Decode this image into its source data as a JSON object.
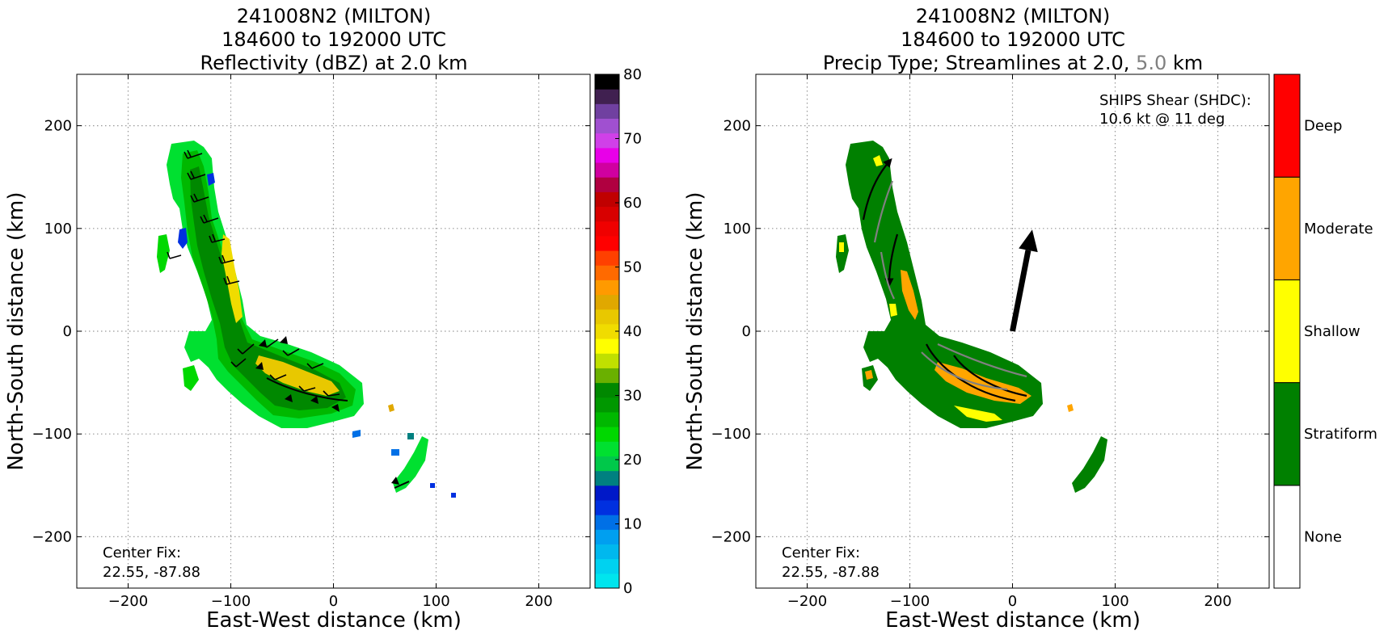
{
  "chart_data": [
    {
      "type": "heatmap",
      "title": [
        "241008N2 (MILTON)",
        "184600 to 192000 UTC",
        "Reflectivity (dBZ) at 2.0 km"
      ],
      "xlabel": "East-West distance (km)",
      "ylabel": "North-South distance (km)",
      "xlim": [
        -250,
        250
      ],
      "ylim": [
        -250,
        250
      ],
      "xticks": [
        "−200",
        "−100",
        "0",
        "100",
        "200"
      ],
      "yticks": [
        "−200",
        "−100",
        "0",
        "100",
        "200"
      ],
      "grid": true,
      "annotation": [
        "Center Fix:",
        "22.55, -87.88"
      ],
      "colorbar": {
        "ticks": [
          "0",
          "10",
          "20",
          "30",
          "40",
          "50",
          "60",
          "70",
          "80"
        ],
        "range": [
          0,
          80
        ],
        "colors": [
          "#00e5ee",
          "#00d2f0",
          "#00b8ee",
          "#009ff0",
          "#0070e6",
          "#0030e0",
          "#0018c8",
          "#008080",
          "#00c84a",
          "#00e030",
          "#00d800",
          "#00b800",
          "#009800",
          "#008800",
          "#6ab000",
          "#c0e000",
          "#ffff00",
          "#f0dc00",
          "#e8c800",
          "#e0a800",
          "#ff9a00",
          "#ff6a00",
          "#ff4000",
          "#ff0000",
          "#f00000",
          "#d80000",
          "#c00000",
          "#b00040",
          "#d000a0",
          "#e800e8",
          "#d040e8",
          "#a050d0",
          "#7040a0",
          "#402050",
          "#000000"
        ]
      }
    },
    {
      "type": "heatmap",
      "title": [
        "241008N2 (MILTON)",
        "184600 to 192000 UTC",
        "Precip Type; Streamlines at 2.0,",
        "5.0",
        "km"
      ],
      "xlabel": "East-West distance (km)",
      "ylabel": "North-South distance (km)",
      "xlim": [
        -250,
        250
      ],
      "ylim": [
        -250,
        250
      ],
      "xticks": [
        "−200",
        "−100",
        "0",
        "100",
        "200"
      ],
      "yticks": [
        "−200",
        "−100",
        "0",
        "100",
        "200"
      ],
      "grid": true,
      "annotation": [
        "Center Fix:",
        "22.55, -87.88"
      ],
      "shear": {
        "label": "SHIPS Shear (SHDC):",
        "value": "10.6 kt @ 11 deg",
        "kt": 10.6,
        "deg": 11
      },
      "colorbar": {
        "categories": [
          "None",
          "Stratiform",
          "Shallow",
          "Moderate",
          "Deep"
        ],
        "colors": [
          "#ffffff",
          "#008000",
          "#ffff00",
          "#ffa500",
          "#ff0000"
        ]
      }
    }
  ]
}
